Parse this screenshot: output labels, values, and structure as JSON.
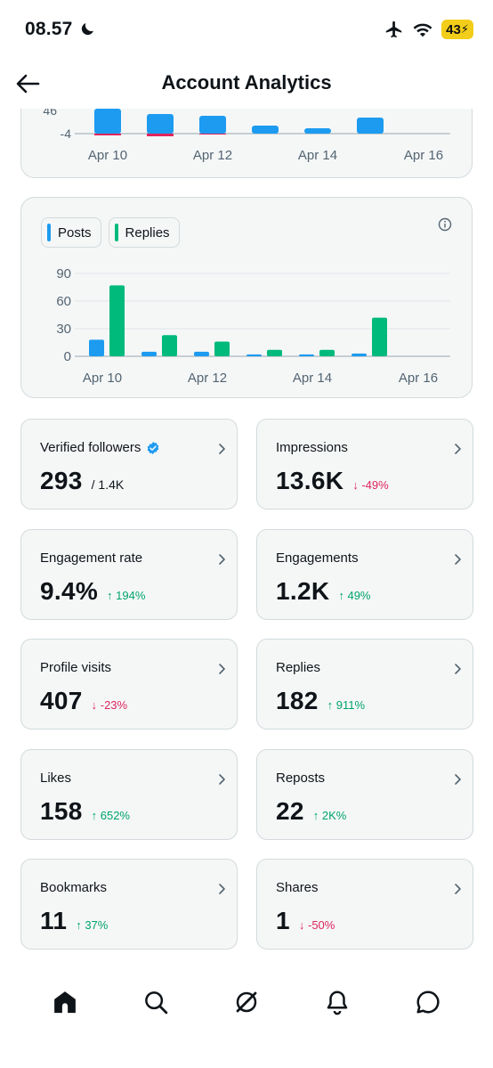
{
  "status_bar": {
    "time": "08.57",
    "battery": "43"
  },
  "header": {
    "title": "Account Analytics"
  },
  "top_chart": {
    "y_ticks": [
      "46",
      "-4"
    ],
    "x_ticks": [
      "Apr 10",
      "Apr 12",
      "Apr 14",
      "Apr 16"
    ]
  },
  "chart_data": {
    "type": "bar",
    "categories": [
      "Apr 10",
      "Apr 11",
      "Apr 12",
      "Apr 13",
      "Apr 14",
      "Apr 15",
      "Apr 16"
    ],
    "series": [
      {
        "name": "Posts",
        "values": [
          18,
          5,
          5,
          2,
          2,
          3,
          0
        ],
        "color": "#1d9bf0"
      },
      {
        "name": "Replies",
        "values": [
          77,
          23,
          16,
          7,
          7,
          42,
          0
        ],
        "color": "#00ba7c"
      }
    ],
    "y_ticks": [
      "90",
      "60",
      "30",
      "0"
    ],
    "x_ticks": [
      "Apr 10",
      "Apr 12",
      "Apr 14",
      "Apr 16"
    ],
    "ylim": [
      0,
      90
    ],
    "grid": true,
    "legend_position": "top-left"
  },
  "metrics": [
    {
      "label": "Verified followers",
      "value": "293",
      "sub": "/ 1.4K",
      "change": "",
      "dir": ""
    },
    {
      "label": "Impressions",
      "value": "13.6K",
      "sub": "",
      "change": "↓ -49%",
      "dir": "down"
    },
    {
      "label": "Engagement rate",
      "value": "9.4%",
      "sub": "",
      "change": "↑ 194%",
      "dir": "up"
    },
    {
      "label": "Engagements",
      "value": "1.2K",
      "sub": "",
      "change": "↑ 49%",
      "dir": "up"
    },
    {
      "label": "Profile visits",
      "value": "407",
      "sub": "",
      "change": "↓ -23%",
      "dir": "down"
    },
    {
      "label": "Replies",
      "value": "182",
      "sub": "",
      "change": "↑ 911%",
      "dir": "up"
    },
    {
      "label": "Likes",
      "value": "158",
      "sub": "",
      "change": "↑ 652%",
      "dir": "up"
    },
    {
      "label": "Reposts",
      "value": "22",
      "sub": "",
      "change": "↑ 2K%",
      "dir": "up"
    },
    {
      "label": "Bookmarks",
      "value": "11",
      "sub": "",
      "change": "↑ 37%",
      "dir": "up"
    },
    {
      "label": "Shares",
      "value": "1",
      "sub": "",
      "change": "↓ -50%",
      "dir": "down"
    }
  ],
  "nav": [
    "home-icon",
    "search-icon",
    "grok-icon",
    "bell-icon",
    "messages-icon"
  ]
}
